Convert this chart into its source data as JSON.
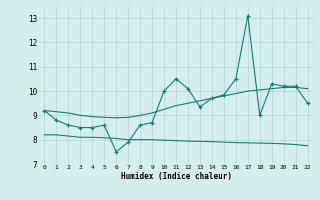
{
  "x": [
    0,
    1,
    2,
    3,
    4,
    5,
    6,
    7,
    8,
    9,
    10,
    11,
    12,
    13,
    14,
    15,
    16,
    17,
    18,
    19,
    20,
    21,
    22
  ],
  "line_main": [
    9.2,
    8.8,
    8.6,
    8.5,
    8.5,
    8.6,
    7.5,
    7.9,
    8.6,
    8.7,
    10.0,
    10.5,
    10.1,
    9.35,
    9.7,
    9.85,
    10.5,
    13.1,
    9.0,
    10.3,
    10.2,
    10.2,
    9.5
  ],
  "line_trend": [
    9.2,
    9.15,
    9.1,
    9.0,
    8.95,
    8.92,
    8.9,
    8.92,
    9.0,
    9.1,
    9.25,
    9.4,
    9.5,
    9.6,
    9.7,
    9.8,
    9.9,
    10.0,
    10.05,
    10.1,
    10.15,
    10.15,
    10.1
  ],
  "line_bottom": [
    8.2,
    8.2,
    8.15,
    8.1,
    8.1,
    8.08,
    8.05,
    8.0,
    8.0,
    8.0,
    7.98,
    7.96,
    7.94,
    7.93,
    7.92,
    7.9,
    7.88,
    7.87,
    7.86,
    7.85,
    7.83,
    7.8,
    7.75
  ],
  "ylim": [
    7.0,
    13.5
  ],
  "yticks": [
    7,
    8,
    9,
    10,
    11,
    12,
    13
  ],
  "xlim": [
    -0.5,
    22.5
  ],
  "xlabel": "Humidex (Indice chaleur)",
  "bg_color": "#d4eeee",
  "line_color": "#1a7a6e",
  "grid_color": "#b8d8d8"
}
